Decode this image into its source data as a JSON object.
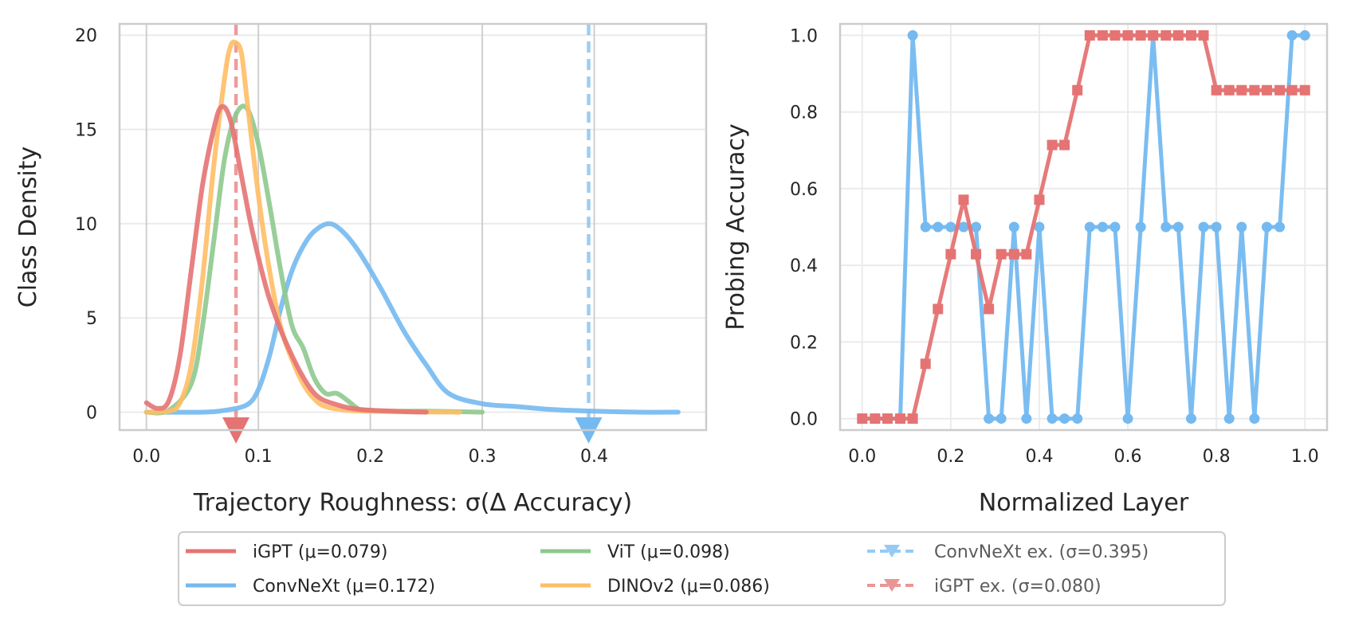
{
  "chart_data": [
    {
      "type": "line",
      "subtype": "kde-density",
      "title": "",
      "xlabel": "Trajectory Roughness: σ(Δ Accuracy)",
      "ylabel": "Class Density",
      "xlim": [
        -0.024,
        0.5
      ],
      "ylim": [
        -0.95,
        20.6
      ],
      "xticks": [
        0.0,
        0.1,
        0.2,
        0.3,
        0.4
      ],
      "xtick_labels": [
        "0.0",
        "0.1",
        "0.2",
        "0.3",
        "0.4"
      ],
      "yticks": [
        0,
        5,
        10,
        15,
        20
      ],
      "ytick_labels": [
        "0",
        "5",
        "10",
        "15",
        "20"
      ],
      "grid": true,
      "series": [
        {
          "name": "iGPT",
          "color": "#e57373",
          "x": [
            0.0,
            0.01,
            0.02,
            0.03,
            0.04,
            0.05,
            0.06,
            0.067,
            0.075,
            0.085,
            0.095,
            0.11,
            0.13,
            0.15,
            0.17,
            0.19,
            0.22,
            0.25
          ],
          "y": [
            0.5,
            0.2,
            0.6,
            3.0,
            7.5,
            12.0,
            15.0,
            16.2,
            15.5,
            12.5,
            9.5,
            6.0,
            3.0,
            1.0,
            0.4,
            0.15,
            0.05,
            0.0
          ]
        },
        {
          "name": "ConvNeXt",
          "color": "#74b9f0",
          "x": [
            0.0,
            0.05,
            0.07,
            0.09,
            0.1,
            0.11,
            0.12,
            0.13,
            0.14,
            0.15,
            0.163,
            0.175,
            0.19,
            0.21,
            0.23,
            0.25,
            0.27,
            0.3,
            0.33,
            0.36,
            0.4,
            0.44,
            0.475
          ],
          "y": [
            0.0,
            0.0,
            0.1,
            0.4,
            1.2,
            3.0,
            5.5,
            7.5,
            8.8,
            9.6,
            10.0,
            9.6,
            8.5,
            6.5,
            4.3,
            2.5,
            1.0,
            0.45,
            0.3,
            0.15,
            0.05,
            0.0,
            0.0
          ]
        },
        {
          "name": "ViT",
          "color": "#8ec98e",
          "x": [
            0.0,
            0.02,
            0.04,
            0.05,
            0.06,
            0.07,
            0.08,
            0.09,
            0.1,
            0.11,
            0.12,
            0.13,
            0.14,
            0.15,
            0.16,
            0.17,
            0.18,
            0.19,
            0.2,
            0.22,
            0.25,
            0.3
          ],
          "y": [
            0.0,
            0.1,
            1.5,
            4.5,
            9.0,
            13.5,
            15.8,
            16.1,
            14.2,
            11.0,
            7.5,
            4.6,
            3.4,
            1.8,
            1.0,
            1.0,
            0.6,
            0.15,
            0.1,
            0.05,
            0.05,
            0.0
          ]
        },
        {
          "name": "DINOv2",
          "color": "#ffbe66",
          "x": [
            0.0,
            0.02,
            0.03,
            0.04,
            0.05,
            0.06,
            0.07,
            0.075,
            0.08,
            0.085,
            0.09,
            0.1,
            0.11,
            0.12,
            0.13,
            0.14,
            0.15,
            0.16,
            0.18,
            0.2,
            0.23,
            0.28
          ],
          "y": [
            0.0,
            0.05,
            0.5,
            2.5,
            7.0,
            13.0,
            17.8,
            19.4,
            19.6,
            19.0,
            16.5,
            11.5,
            7.5,
            4.5,
            2.8,
            1.5,
            0.7,
            0.3,
            0.1,
            0.05,
            0.02,
            0.0
          ]
        }
      ],
      "reference_lines": [
        {
          "name": "ConvNeXt ex.",
          "x": 0.395,
          "color": "#74b9f0"
        },
        {
          "name": "iGPT ex.",
          "x": 0.08,
          "color": "#e57373"
        }
      ]
    },
    {
      "type": "line",
      "title": "",
      "xlabel": "Normalized Layer",
      "ylabel": "Probing Accuracy",
      "xlim": [
        -0.05,
        1.05
      ],
      "ylim": [
        -0.03,
        1.03
      ],
      "xticks": [
        0.0,
        0.2,
        0.4,
        0.6,
        0.8,
        1.0
      ],
      "xtick_labels": [
        "0.0",
        "0.2",
        "0.4",
        "0.6",
        "0.8",
        "1.0"
      ],
      "yticks": [
        0.0,
        0.2,
        0.4,
        0.6,
        0.8,
        1.0
      ],
      "ytick_labels": [
        "0.0",
        "0.2",
        "0.4",
        "0.6",
        "0.8",
        "1.0"
      ],
      "grid": true,
      "series": [
        {
          "name": "ConvNeXt ex. (σ=0.395)",
          "color": "#74b9f0",
          "marker": "circle",
          "x": [
            0.0,
            0.029,
            0.057,
            0.086,
            0.114,
            0.143,
            0.171,
            0.2,
            0.229,
            0.257,
            0.286,
            0.314,
            0.343,
            0.371,
            0.4,
            0.429,
            0.457,
            0.486,
            0.514,
            0.543,
            0.571,
            0.6,
            0.629,
            0.657,
            0.686,
            0.714,
            0.743,
            0.771,
            0.8,
            0.829,
            0.857,
            0.886,
            0.914,
            0.943,
            0.971,
            1.0
          ],
          "y": [
            0,
            0,
            0,
            0,
            1.0,
            0.5,
            0.5,
            0.5,
            0.5,
            0.5,
            0,
            0,
            0.5,
            0,
            0.5,
            0,
            0,
            0,
            0.5,
            0.5,
            0.5,
            0,
            0.5,
            1.0,
            0.5,
            0.5,
            0,
            0.5,
            0.5,
            0,
            0.5,
            0,
            0.5,
            0.5,
            1.0,
            1.0
          ]
        },
        {
          "name": "iGPT ex. (σ=0.080)",
          "color": "#e57373",
          "marker": "square",
          "x": [
            0.0,
            0.029,
            0.057,
            0.086,
            0.114,
            0.143,
            0.171,
            0.2,
            0.229,
            0.257,
            0.286,
            0.314,
            0.343,
            0.371,
            0.4,
            0.429,
            0.457,
            0.486,
            0.514,
            0.543,
            0.571,
            0.6,
            0.629,
            0.657,
            0.686,
            0.714,
            0.743,
            0.771,
            0.8,
            0.829,
            0.857,
            0.886,
            0.914,
            0.943,
            0.971,
            1.0
          ],
          "y": [
            0,
            0,
            0,
            0,
            0,
            0.143,
            0.286,
            0.429,
            0.571,
            0.429,
            0.286,
            0.429,
            0.429,
            0.429,
            0.571,
            0.714,
            0.714,
            0.857,
            1.0,
            1.0,
            1.0,
            1.0,
            1.0,
            1.0,
            1.0,
            1.0,
            1.0,
            1.0,
            0.857,
            0.857,
            0.857,
            0.857,
            0.857,
            0.857,
            0.857,
            0.857
          ]
        }
      ]
    }
  ],
  "legend": {
    "placement": "bottom-center",
    "entries": [
      {
        "label": "iGPT (μ=0.079)",
        "color": "#e57373",
        "style": "line"
      },
      {
        "label": "ConvNeXt (μ=0.172)",
        "color": "#74b9f0",
        "style": "line"
      },
      {
        "label": "ViT (μ=0.098)",
        "color": "#8ec98e",
        "style": "line"
      },
      {
        "label": "DINOv2 (μ=0.086)",
        "color": "#ffbe66",
        "style": "line"
      },
      {
        "label": "ConvNeXt ex. (σ=0.395)",
        "color": "#74b9f0",
        "style": "dashed-marker"
      },
      {
        "label": "iGPT ex. (σ=0.080)",
        "color": "#e57373",
        "style": "dashed-marker"
      }
    ]
  }
}
